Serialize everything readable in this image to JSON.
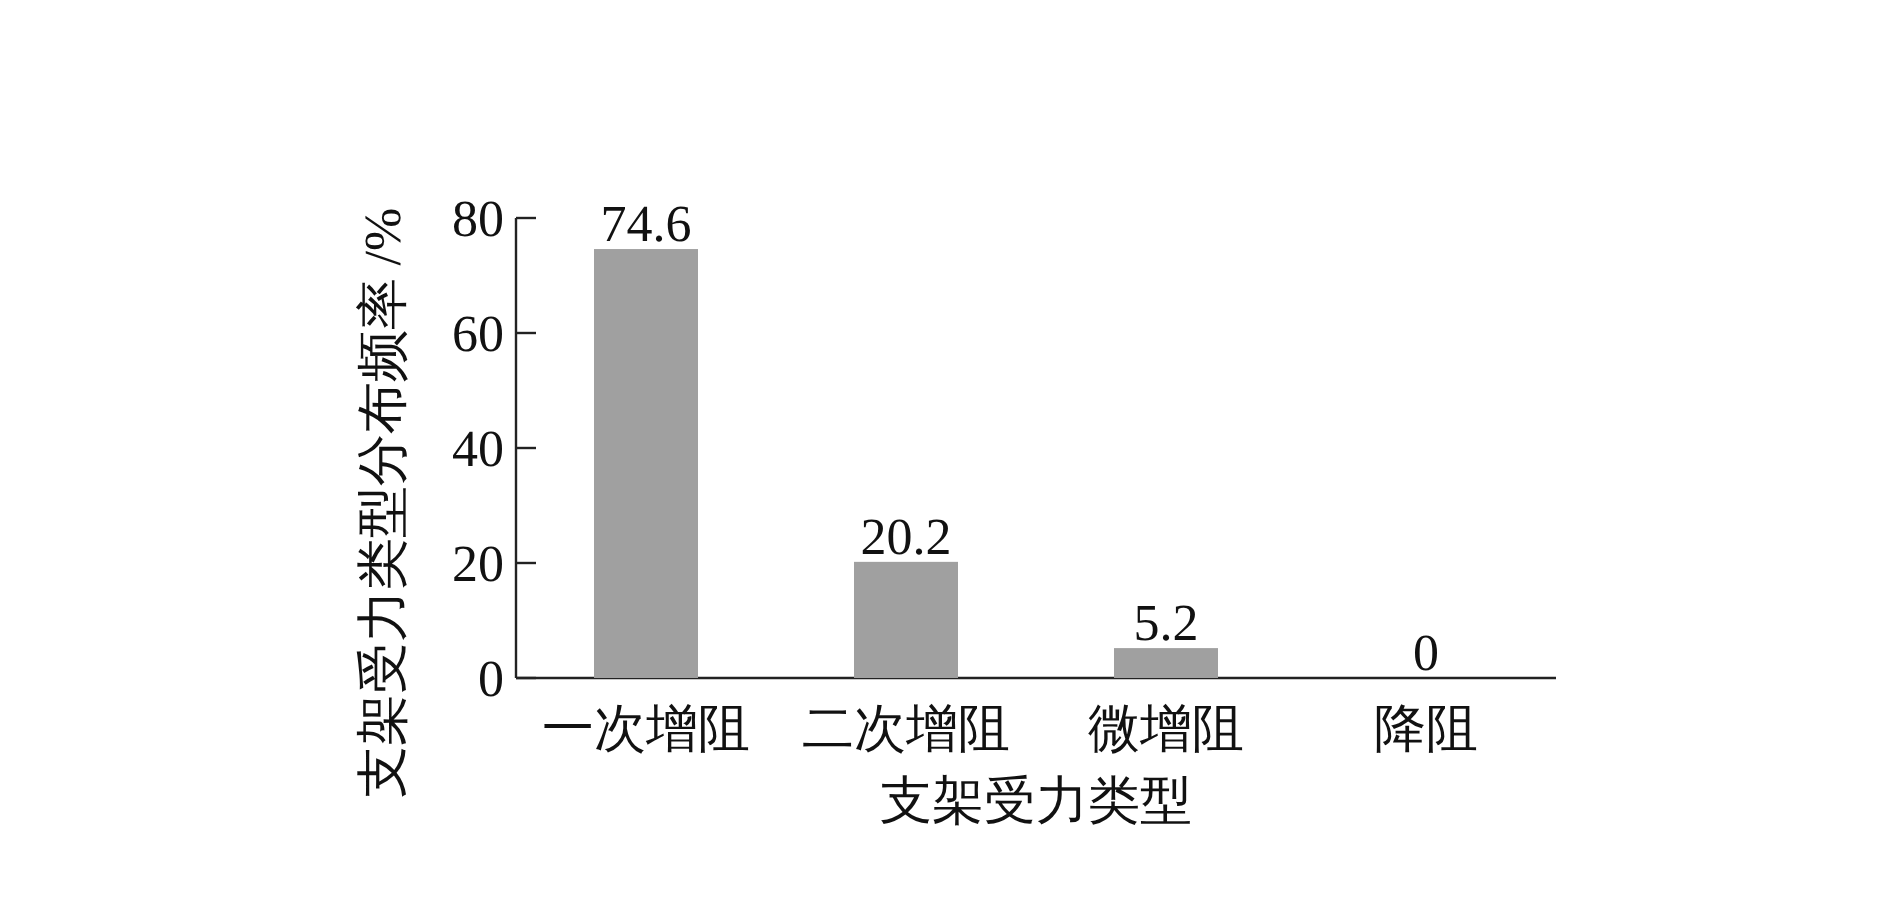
{
  "chart_data": {
    "type": "bar",
    "xlabel": "支架受力类型",
    "ylabel": "支架受力类型分布频率 /%",
    "categories": [
      "一次增阻",
      "二次增阻",
      "微增阻",
      "降阻"
    ],
    "values": [
      74.6,
      20.2,
      5.2,
      0
    ],
    "color": "#a0a0a0",
    "ylim": [
      0,
      80
    ],
    "yticks": [
      0,
      20,
      40,
      60,
      80
    ],
    "data_labels": true,
    "grid": false
  }
}
